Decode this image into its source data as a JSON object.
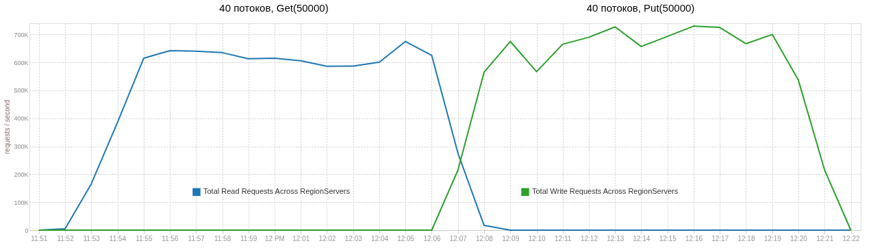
{
  "chart_data": {
    "type": "line",
    "annotations": [
      "40 потоков, Get(50000)",
      "40 потоков, Put(50000)"
    ],
    "ylabel": "requests / second",
    "x": [
      11.85,
      11.8667,
      11.8833,
      11.9,
      11.9167,
      11.9333,
      11.95,
      11.9667,
      11.9833,
      12.0,
      12.0167,
      12.0333,
      12.05,
      12.0667,
      12.0833,
      12.1,
      12.1167,
      12.1333,
      12.15,
      12.1667,
      12.1833,
      12.2,
      12.2167,
      12.2333,
      12.25,
      12.2667,
      12.2833,
      12.3,
      12.3167,
      12.3333,
      12.35,
      12.3667
    ],
    "series": [
      {
        "name": "Total Read Requests Across RegionServers",
        "color": "#1f77b4",
        "values": [
          0,
          5000,
          165000,
          385000,
          615000,
          642000,
          640000,
          635000,
          613000,
          615000,
          606000,
          586000,
          587000,
          601000,
          675000,
          625000,
          275000,
          17000,
          0,
          0,
          0,
          0,
          0,
          0,
          0,
          0,
          0,
          0,
          0,
          0,
          0,
          0
        ]
      },
      {
        "name": "Total Write Requests Across RegionServers",
        "color": "#2ca02c",
        "values": [
          0,
          0,
          0,
          0,
          0,
          0,
          0,
          0,
          0,
          0,
          0,
          0,
          0,
          0,
          0,
          0,
          215000,
          565000,
          675000,
          567000,
          665000,
          690000,
          727000,
          657000,
          693000,
          730000,
          725000,
          667000,
          700000,
          537000,
          215000,
          0
        ]
      }
    ],
    "xlim": [
      11.844,
      12.373
    ],
    "xticks": [
      {
        "value": 11.85,
        "label": "11:51"
      },
      {
        "value": 11.8667,
        "label": "11:52"
      },
      {
        "value": 11.8833,
        "label": "11:53"
      },
      {
        "value": 11.9,
        "label": "11:54"
      },
      {
        "value": 11.9167,
        "label": "11:55"
      },
      {
        "value": 11.9333,
        "label": "11:56"
      },
      {
        "value": 11.95,
        "label": "11:57"
      },
      {
        "value": 11.9667,
        "label": "11:58"
      },
      {
        "value": 11.9833,
        "label": "11:59"
      },
      {
        "value": 12.0,
        "label": "12 PM"
      },
      {
        "value": 12.0167,
        "label": "12:01"
      },
      {
        "value": 12.0333,
        "label": "12:02"
      },
      {
        "value": 12.05,
        "label": "12:03"
      },
      {
        "value": 12.0667,
        "label": "12:04"
      },
      {
        "value": 12.0833,
        "label": "12:05"
      },
      {
        "value": 12.1,
        "label": "12:06"
      },
      {
        "value": 12.1167,
        "label": "12:07"
      },
      {
        "value": 12.1333,
        "label": "12:08"
      },
      {
        "value": 12.15,
        "label": "12:09"
      },
      {
        "value": 12.1667,
        "label": "12:10"
      },
      {
        "value": 12.1833,
        "label": "12:11"
      },
      {
        "value": 12.2,
        "label": "12:12"
      },
      {
        "value": 12.2167,
        "label": "12:13"
      },
      {
        "value": 12.2333,
        "label": "12:14"
      },
      {
        "value": 12.25,
        "label": "12:15"
      },
      {
        "value": 12.2667,
        "label": "12:16"
      },
      {
        "value": 12.2833,
        "label": "12:17"
      },
      {
        "value": 12.3,
        "label": "12:18"
      },
      {
        "value": 12.3167,
        "label": "12:19"
      },
      {
        "value": 12.3333,
        "label": "12:20"
      },
      {
        "value": 12.35,
        "label": "12:21"
      },
      {
        "value": 12.3667,
        "label": "12:22"
      }
    ],
    "ylim": [
      0,
      740000
    ],
    "yticks": [
      0,
      {
        "value": 100000,
        "label": "100K"
      },
      {
        "value": 200000,
        "label": "200K"
      },
      {
        "value": 300000,
        "label": "300K"
      },
      {
        "value": 400000,
        "label": "400K"
      },
      {
        "value": 500000,
        "label": "500K"
      },
      {
        "value": 600000,
        "label": "600K"
      },
      {
        "value": 700000,
        "label": "700K"
      }
    ],
    "grid": true,
    "legend": "bottom"
  }
}
